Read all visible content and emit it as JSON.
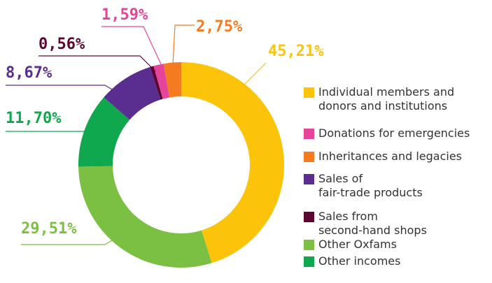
{
  "chart_data": {
    "type": "donut",
    "categories": [
      "Individual members and\ndonors and institutions",
      "Donations for emergencies",
      "Inheritances and legacies",
      "Sales of\nfair-trade products",
      "Sales from\nsecond-hand shops",
      "Other Oxfams",
      "Other incomes"
    ],
    "values": [
      45.21,
      1.59,
      2.75,
      8.67,
      0.56,
      29.51,
      11.7
    ],
    "value_labels": [
      "45,21%",
      "1,59%",
      "2,75%",
      "8,67%",
      "0,56%",
      "29,51%",
      "11,70%"
    ],
    "colors": [
      "#fcc30b",
      "#e6449a",
      "#f47b20",
      "#5a2d91",
      "#5d0632",
      "#7bbf43",
      "#10a84f"
    ]
  }
}
